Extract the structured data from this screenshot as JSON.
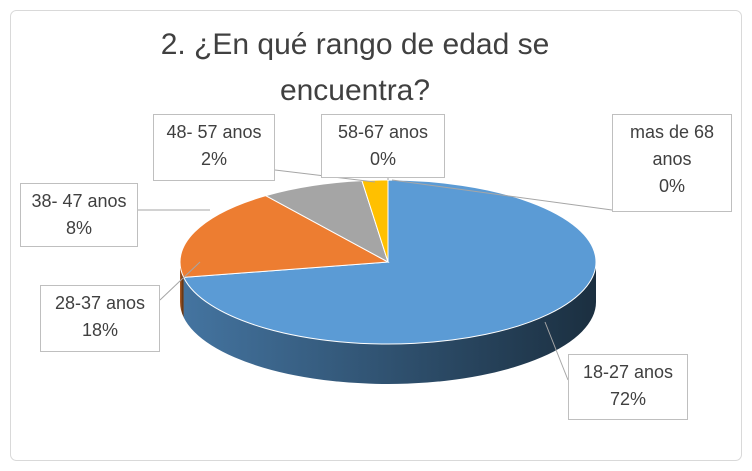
{
  "chart_data": {
    "type": "pie3d",
    "title": "2. ¿En qué rango de edad se encuentra?",
    "categories": [
      "18-27 anos",
      "28-37 anos",
      "38- 47 anos",
      "48- 57 anos",
      "58-67 anos",
      "mas de 68 anos"
    ],
    "values": [
      72,
      18,
      8,
      2,
      0,
      0
    ],
    "value_labels": [
      "72%",
      "18%",
      "8%",
      "2%",
      "0%",
      "0%"
    ],
    "colors": [
      "#5b9bd5",
      "#ed7d31",
      "#a5a5a5",
      "#ffc000",
      "#4472c4",
      "#70ad47"
    ]
  }
}
